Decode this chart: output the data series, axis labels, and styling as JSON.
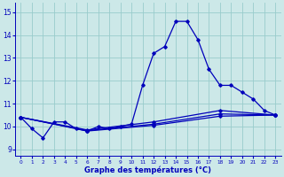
{
  "xlabel": "Graphe des températures (°C)",
  "background_color": "#cce8e8",
  "grid_color": "#99cccc",
  "line_color": "#0000bb",
  "xlim": [
    -0.5,
    23.5
  ],
  "ylim": [
    8.7,
    15.4
  ],
  "yticks": [
    9,
    10,
    11,
    12,
    13,
    14,
    15
  ],
  "xticks": [
    0,
    1,
    2,
    3,
    4,
    5,
    6,
    7,
    8,
    9,
    10,
    11,
    12,
    13,
    14,
    15,
    16,
    17,
    18,
    19,
    20,
    21,
    22,
    23
  ],
  "series": [
    {
      "x": [
        0,
        1,
        2,
        3,
        4,
        5,
        6,
        7,
        8,
        9,
        10,
        11,
        12,
        13,
        14,
        15,
        16,
        17,
        18,
        19,
        20,
        21,
        22,
        23
      ],
      "y": [
        10.4,
        9.9,
        9.5,
        10.2,
        10.2,
        9.9,
        9.8,
        10.0,
        9.9,
        10.0,
        10.1,
        11.8,
        13.2,
        13.5,
        14.6,
        14.6,
        13.8,
        12.5,
        11.8,
        11.8,
        11.5,
        11.2,
        10.7,
        10.5
      ],
      "marker": "D",
      "markersize": 1.8,
      "linewidth": 0.9
    },
    {
      "x": [
        0,
        6,
        12,
        18,
        23
      ],
      "y": [
        10.4,
        9.8,
        10.05,
        10.45,
        10.5
      ],
      "marker": "D",
      "markersize": 1.8,
      "linewidth": 0.9
    },
    {
      "x": [
        0,
        6,
        12,
        18,
        23
      ],
      "y": [
        10.4,
        9.82,
        10.1,
        10.55,
        10.5
      ],
      "marker": "D",
      "markersize": 1.8,
      "linewidth": 0.9
    },
    {
      "x": [
        0,
        6,
        12,
        18,
        23
      ],
      "y": [
        10.4,
        9.85,
        10.2,
        10.7,
        10.5
      ],
      "marker": "D",
      "markersize": 1.8,
      "linewidth": 0.9
    }
  ]
}
